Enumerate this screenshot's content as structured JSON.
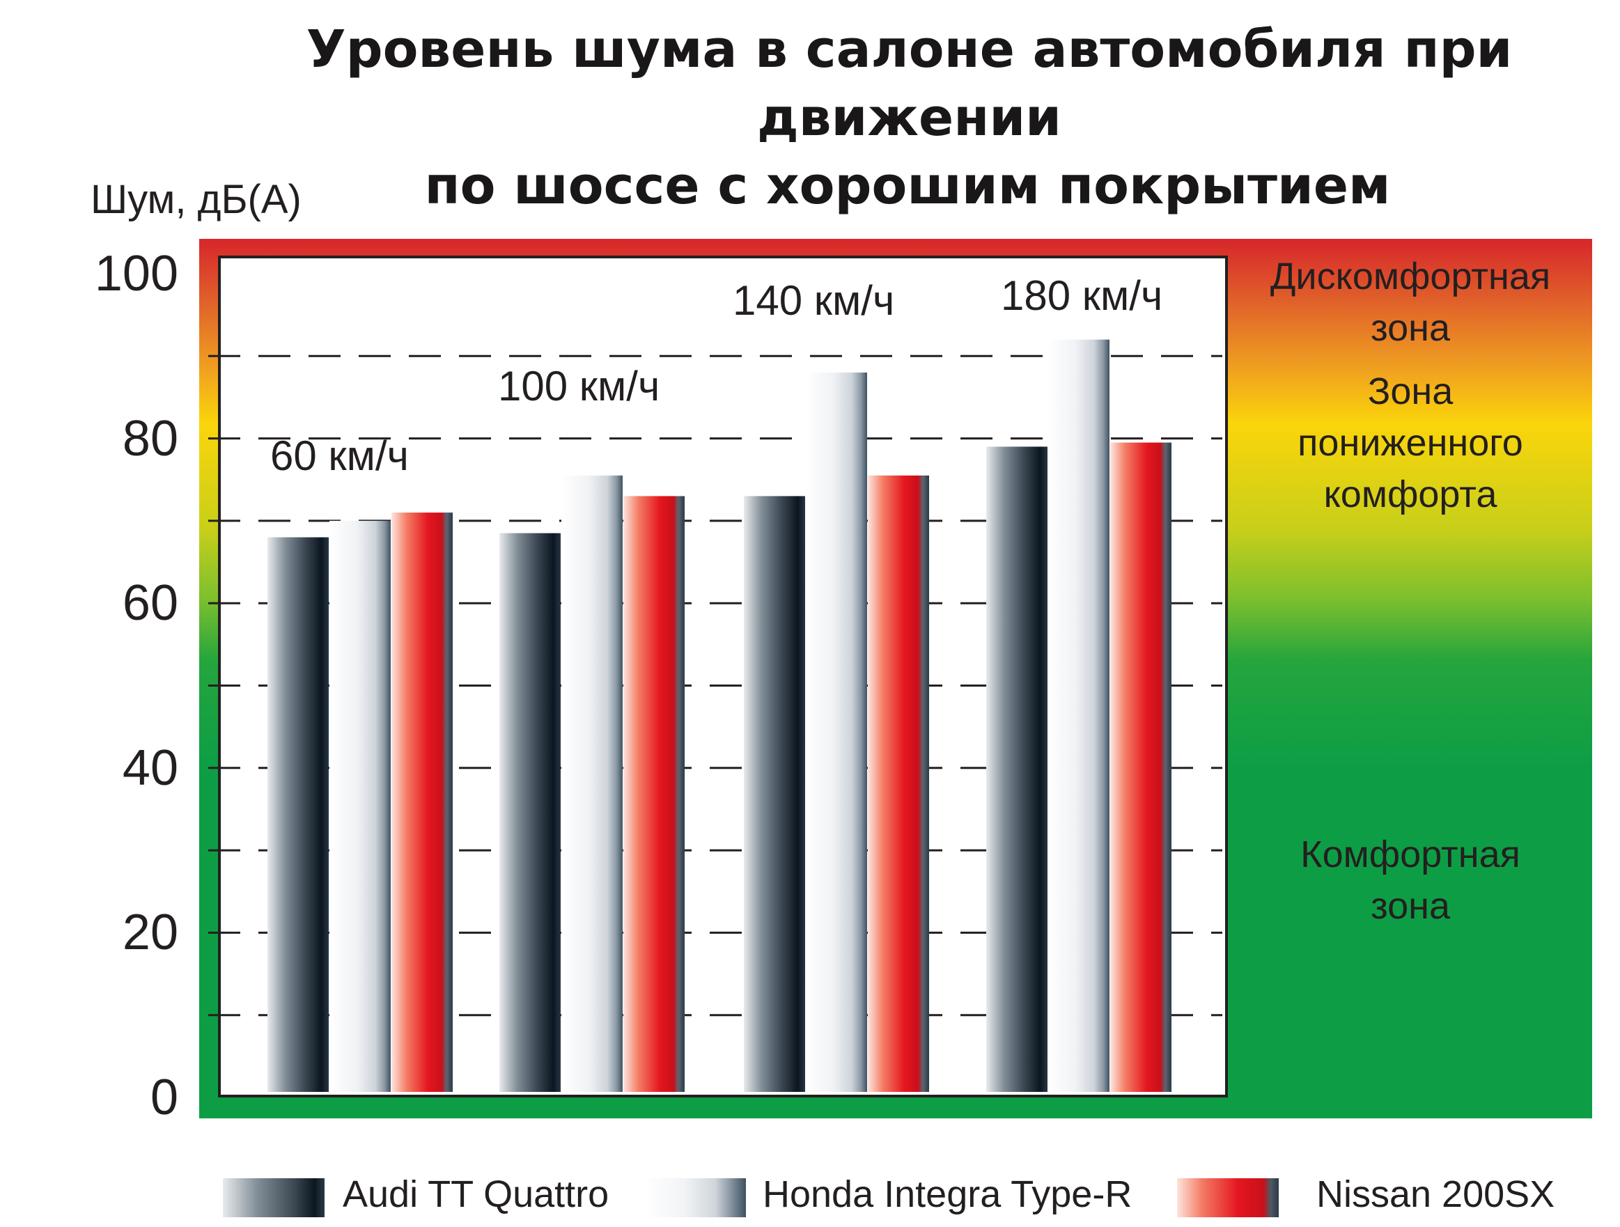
{
  "chart_data": {
    "type": "bar",
    "title": "Уровень шума в салоне автомобиля при движении по шоссе с хорошим покрытием",
    "title_lines": [
      "Уровень шума в салоне автомобиля при движении",
      "по шоссе с хорошим покрытием"
    ],
    "ylabel": "Шум, дБ(А)",
    "xlabel": "",
    "ylim": [
      0,
      100
    ],
    "yticks": [
      "100",
      "80",
      "60",
      "40",
      "20",
      "0"
    ],
    "ytick_values": [
      100,
      80,
      60,
      40,
      20,
      0
    ],
    "gridlines": [
      10,
      20,
      30,
      40,
      50,
      60,
      70,
      80,
      90
    ],
    "grid": true,
    "legend_position": "bottom",
    "categories": [
      "60 км/ч",
      "100 км/ч",
      "140 км/ч",
      "180 км/ч"
    ],
    "series": [
      {
        "name": "Audi TT Quattro",
        "values": [
          68,
          68.5,
          73,
          79
        ],
        "color": "#2b3a46"
      },
      {
        "name": "Honda Integra Type-R",
        "values": [
          70,
          75.5,
          88,
          92
        ],
        "color": "#dfe3e8"
      },
      {
        "name": "Nissan 200SX",
        "values": [
          71,
          73,
          75.5,
          79.5
        ],
        "color": "#e4161f"
      }
    ],
    "zones": [
      {
        "lines": [
          "Дискомфортная",
          "зона"
        ],
        "color": "#d7262b"
      },
      {
        "lines": [
          "Зона",
          "пониженного",
          "комфорта"
        ],
        "color": "#fbd50b"
      },
      {
        "lines": [
          "Комфортная",
          "зона"
        ],
        "color": "#0d9e45"
      }
    ]
  }
}
